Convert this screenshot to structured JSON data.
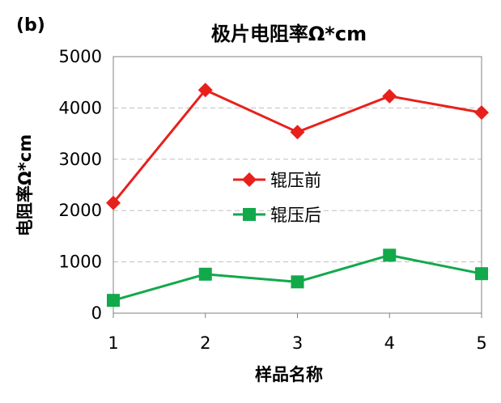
{
  "panel_label": "(b)",
  "chart_data": {
    "type": "line",
    "title": "极片电阻率Ω*cm",
    "xlabel": "样品名称",
    "ylabel": "电阻率Ω*cm",
    "categories": [
      "1",
      "2",
      "3",
      "4",
      "5"
    ],
    "y_ticks": [
      "0",
      "1000",
      "2000",
      "3000",
      "4000",
      "5000"
    ],
    "ylim": [
      0,
      5000
    ],
    "grid": true,
    "legend_position": "center",
    "series": [
      {
        "name": "辊压前",
        "color": "#e8201c",
        "marker": "diamond",
        "values": [
          2150,
          4350,
          3530,
          4230,
          3910
        ]
      },
      {
        "name": "辊压后",
        "color": "#12a94b",
        "marker": "square",
        "values": [
          250,
          760,
          610,
          1130,
          770
        ]
      }
    ]
  }
}
